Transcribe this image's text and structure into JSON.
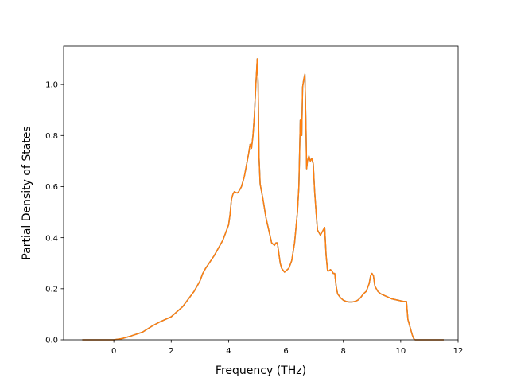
{
  "chart_data": {
    "type": "line",
    "title": "",
    "xlabel": "Frequency (THz)",
    "ylabel": "Partial Density of States",
    "xlim": [
      -1.75,
      12.0
    ],
    "ylim": [
      0.0,
      1.15
    ],
    "xticks": [
      0,
      2,
      4,
      6,
      8,
      10,
      12
    ],
    "xtick_labels": [
      "0",
      "2",
      "4",
      "6",
      "8",
      "10",
      "12"
    ],
    "yticks": [
      0.0,
      0.2,
      0.4,
      0.6,
      0.8,
      1.0
    ],
    "ytick_labels": [
      "0.0",
      "0.2",
      "0.4",
      "0.6",
      "0.8",
      "1.0"
    ],
    "grid": false,
    "legend": "none",
    "series": [
      {
        "color": "#1f77b4",
        "x": [
          -1.1,
          0.0,
          0.3,
          0.6,
          1.0,
          1.35,
          1.6,
          2.0,
          2.4,
          2.8,
          3.0,
          3.1,
          3.2,
          3.5,
          3.8,
          3.9,
          4.0,
          4.05,
          4.1,
          4.15,
          4.2,
          4.3,
          4.35,
          4.45,
          4.55,
          4.6,
          4.65,
          4.7,
          4.75,
          4.8,
          4.85,
          4.9,
          4.95,
          5.0,
          5.03,
          5.06,
          5.1,
          5.15,
          5.2,
          5.3,
          5.4,
          5.5,
          5.6,
          5.65,
          5.7,
          5.8,
          5.85,
          5.95,
          6.0,
          6.1,
          6.2,
          6.3,
          6.4,
          6.45,
          6.5,
          6.52,
          6.55,
          6.58,
          6.62,
          6.66,
          6.7,
          6.72,
          6.75,
          6.8,
          6.85,
          6.9,
          6.95,
          7.0,
          7.05,
          7.1,
          7.2,
          7.3,
          7.35,
          7.4,
          7.45,
          7.5,
          7.55,
          7.6,
          7.65,
          7.7,
          7.75,
          7.8,
          7.9,
          8.0,
          8.1,
          8.2,
          8.3,
          8.4,
          8.5,
          8.6,
          8.7,
          8.8,
          8.9,
          8.95,
          9.0,
          9.05,
          9.1,
          9.2,
          9.3,
          9.5,
          9.7,
          9.9,
          10.1,
          10.2,
          10.25,
          10.3,
          10.35,
          10.4,
          10.45,
          10.5,
          10.6,
          11.5
        ],
        "y": [
          0.0,
          0.0,
          0.005,
          0.015,
          0.03,
          0.055,
          0.07,
          0.09,
          0.13,
          0.19,
          0.23,
          0.26,
          0.28,
          0.33,
          0.39,
          0.42,
          0.45,
          0.49,
          0.55,
          0.57,
          0.58,
          0.575,
          0.58,
          0.6,
          0.64,
          0.67,
          0.7,
          0.73,
          0.765,
          0.75,
          0.8,
          0.88,
          1.0,
          1.1,
          1.0,
          0.72,
          0.61,
          0.58,
          0.55,
          0.48,
          0.43,
          0.38,
          0.37,
          0.38,
          0.38,
          0.3,
          0.28,
          0.265,
          0.27,
          0.28,
          0.31,
          0.38,
          0.5,
          0.6,
          0.86,
          0.85,
          0.8,
          0.99,
          1.02,
          1.04,
          0.82,
          0.67,
          0.7,
          0.72,
          0.7,
          0.71,
          0.69,
          0.58,
          0.5,
          0.43,
          0.41,
          0.43,
          0.44,
          0.33,
          0.27,
          0.27,
          0.275,
          0.27,
          0.26,
          0.26,
          0.21,
          0.18,
          0.165,
          0.155,
          0.15,
          0.148,
          0.148,
          0.15,
          0.155,
          0.165,
          0.18,
          0.19,
          0.22,
          0.25,
          0.26,
          0.25,
          0.21,
          0.19,
          0.18,
          0.17,
          0.16,
          0.155,
          0.15,
          0.15,
          0.08,
          0.06,
          0.04,
          0.02,
          0.005,
          0.0,
          0.0,
          0.0
        ]
      },
      {
        "color": "#ff7f0e",
        "x": [
          -1.1,
          0.0,
          0.3,
          0.6,
          1.0,
          1.35,
          1.6,
          2.0,
          2.4,
          2.8,
          3.0,
          3.1,
          3.2,
          3.5,
          3.8,
          3.9,
          4.0,
          4.05,
          4.1,
          4.15,
          4.2,
          4.3,
          4.35,
          4.45,
          4.55,
          4.6,
          4.65,
          4.7,
          4.75,
          4.8,
          4.85,
          4.9,
          4.95,
          5.0,
          5.03,
          5.06,
          5.1,
          5.15,
          5.2,
          5.3,
          5.4,
          5.5,
          5.6,
          5.65,
          5.7,
          5.8,
          5.85,
          5.95,
          6.0,
          6.1,
          6.2,
          6.3,
          6.4,
          6.45,
          6.5,
          6.52,
          6.55,
          6.58,
          6.62,
          6.66,
          6.7,
          6.72,
          6.75,
          6.8,
          6.85,
          6.9,
          6.95,
          7.0,
          7.05,
          7.1,
          7.2,
          7.3,
          7.35,
          7.4,
          7.45,
          7.5,
          7.55,
          7.6,
          7.65,
          7.7,
          7.75,
          7.8,
          7.9,
          8.0,
          8.1,
          8.2,
          8.3,
          8.4,
          8.5,
          8.6,
          8.7,
          8.8,
          8.9,
          8.95,
          9.0,
          9.05,
          9.1,
          9.2,
          9.3,
          9.5,
          9.7,
          9.9,
          10.1,
          10.2,
          10.25,
          10.3,
          10.35,
          10.4,
          10.45,
          10.5,
          10.6,
          11.5
        ],
        "y": [
          0.0,
          0.0,
          0.005,
          0.015,
          0.03,
          0.055,
          0.07,
          0.09,
          0.13,
          0.19,
          0.23,
          0.26,
          0.28,
          0.33,
          0.39,
          0.42,
          0.45,
          0.49,
          0.55,
          0.57,
          0.58,
          0.575,
          0.58,
          0.6,
          0.64,
          0.67,
          0.7,
          0.73,
          0.765,
          0.75,
          0.8,
          0.88,
          1.0,
          1.1,
          1.0,
          0.72,
          0.61,
          0.58,
          0.55,
          0.48,
          0.43,
          0.38,
          0.37,
          0.38,
          0.38,
          0.3,
          0.28,
          0.265,
          0.27,
          0.28,
          0.31,
          0.38,
          0.5,
          0.6,
          0.86,
          0.85,
          0.8,
          0.99,
          1.02,
          1.04,
          0.82,
          0.67,
          0.7,
          0.72,
          0.7,
          0.71,
          0.69,
          0.58,
          0.5,
          0.43,
          0.41,
          0.43,
          0.44,
          0.33,
          0.27,
          0.27,
          0.275,
          0.27,
          0.26,
          0.26,
          0.21,
          0.18,
          0.165,
          0.155,
          0.15,
          0.148,
          0.148,
          0.15,
          0.155,
          0.165,
          0.18,
          0.19,
          0.22,
          0.25,
          0.26,
          0.25,
          0.21,
          0.19,
          0.18,
          0.17,
          0.16,
          0.155,
          0.15,
          0.15,
          0.08,
          0.06,
          0.04,
          0.02,
          0.005,
          0.0,
          0.0,
          0.0
        ]
      }
    ]
  }
}
